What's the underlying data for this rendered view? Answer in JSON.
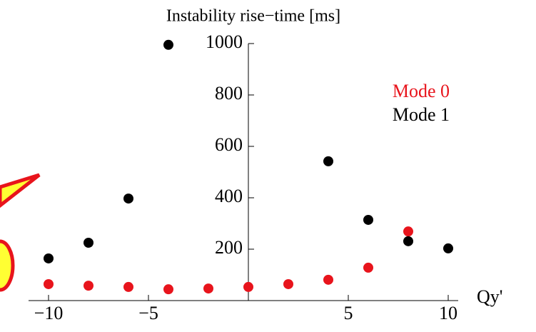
{
  "chart_data": {
    "type": "scatter",
    "title": "Instability rise−time [ms]",
    "x_label": "Qy'",
    "xlim": [
      -11,
      10.5
    ],
    "ylim": [
      0,
      1000
    ],
    "xticks": [
      {
        "value": -10,
        "label": "−10"
      },
      {
        "value": -5,
        "label": "−5"
      },
      5,
      10
    ],
    "yticks": [
      200,
      400,
      600,
      800,
      1000
    ],
    "legend": "top-right",
    "series": [
      {
        "name": "Mode 0",
        "color": "#e8141c",
        "x": [
          -10,
          -8,
          -6,
          -4,
          -2,
          0,
          2,
          4,
          6,
          8
        ],
        "values": [
          64,
          58,
          53,
          44,
          47,
          53,
          64,
          81,
          128,
          269
        ]
      },
      {
        "name": "Mode 1",
        "color": "#000000",
        "x": [
          -10,
          -8,
          -6,
          -4,
          4,
          6,
          8,
          10
        ],
        "values": [
          164,
          225,
          397,
          995,
          542,
          314,
          231,
          203
        ]
      }
    ]
  }
}
